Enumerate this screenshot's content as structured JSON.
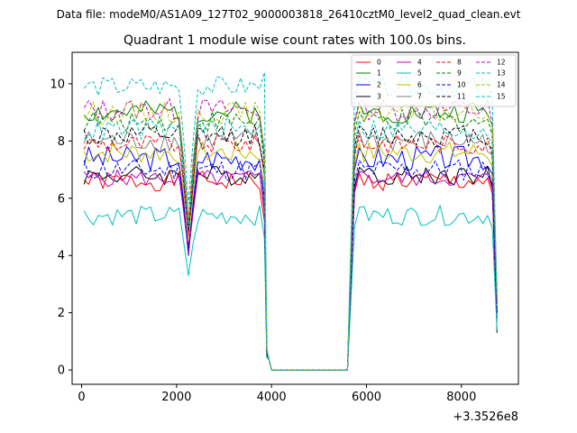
{
  "suptitle": "Data file: modeM0/AS1A09_127T02_9000003818_26410cztM0_level2_quad_clean.evt",
  "chart_data": {
    "type": "line",
    "title": "Quadrant 1 module wise count rates with 100.0s bins.",
    "xlabel": "",
    "ylabel": "",
    "x_offset_label": "+3.3526e8",
    "xlim": [
      -200,
      9200
    ],
    "ylim": [
      -0.5,
      11.1
    ],
    "xticks": [
      0,
      2000,
      4000,
      6000,
      8000
    ],
    "xtick_labels": [
      "0",
      "2000",
      "4000",
      "6000",
      "8000"
    ],
    "yticks": [
      0,
      2,
      4,
      6,
      8,
      10
    ],
    "ytick_labels": [
      "0",
      "2",
      "4",
      "6",
      "8",
      "10"
    ],
    "grid": false,
    "legend_location": "top-right",
    "legend_columns": 4,
    "segment_a": {
      "x_start": 50,
      "x_end": 3850,
      "step": 100
    },
    "gap": {
      "x_start": 3950,
      "x_end": 5650,
      "value": 0.0
    },
    "segment_b": {
      "x_start": 5750,
      "x_end": 8750,
      "step": 100
    },
    "series": [
      {
        "name": "0",
        "color": "#ff0000",
        "dash": "solid",
        "base": 6.6,
        "amp": 0.35,
        "dip": 4.3,
        "drop_a": 5.2,
        "drop_b": 2.0,
        "seed": 1
      },
      {
        "name": "1",
        "color": "#008000",
        "dash": "solid",
        "base": 9.0,
        "amp": 0.4,
        "dip": 5.0,
        "drop_a": 7.5,
        "drop_b": 2.0,
        "seed": 2
      },
      {
        "name": "2",
        "color": "#0000ff",
        "dash": "solid",
        "base": 7.4,
        "amp": 0.45,
        "dip": 4.0,
        "drop_a": 6.0,
        "drop_b": 2.0,
        "seed": 3
      },
      {
        "name": "3",
        "color": "#000000",
        "dash": "solid",
        "base": 6.8,
        "amp": 0.35,
        "dip": 4.2,
        "drop_a": 5.6,
        "drop_b": 1.3,
        "seed": 4
      },
      {
        "name": "4",
        "color": "#bf00bf",
        "dash": "solid",
        "base": 6.7,
        "amp": 0.3,
        "dip": 4.1,
        "drop_a": 5.5,
        "drop_b": 1.8,
        "seed": 5
      },
      {
        "name": "5",
        "color": "#00bfbf",
        "dash": "solid",
        "base": 5.4,
        "amp": 0.35,
        "dip": 3.3,
        "drop_a": 4.6,
        "drop_b": 1.4,
        "seed": 6
      },
      {
        "name": "6",
        "color": "#bfbf00",
        "dash": "solid",
        "base": 7.6,
        "amp": 0.4,
        "dip": 4.6,
        "drop_a": 6.4,
        "drop_b": 2.2,
        "seed": 7
      },
      {
        "name": "7",
        "color": "#808080",
        "dash": "solid",
        "base": 8.0,
        "amp": 0.4,
        "dip": 4.8,
        "drop_a": 6.8,
        "drop_b": 2.4,
        "seed": 8
      },
      {
        "name": "8",
        "color": "#ff0000",
        "dash": "dashed",
        "base": 7.9,
        "amp": 0.35,
        "dip": 4.7,
        "drop_a": 6.8,
        "drop_b": 2.3,
        "seed": 9
      },
      {
        "name": "9",
        "color": "#008000",
        "dash": "dashed",
        "base": 8.7,
        "amp": 0.4,
        "dip": 5.0,
        "drop_a": 7.3,
        "drop_b": 2.5,
        "seed": 10
      },
      {
        "name": "10",
        "color": "#0000ff",
        "dash": "dashed",
        "base": 7.0,
        "amp": 0.4,
        "dip": 4.2,
        "drop_a": 5.9,
        "drop_b": 2.0,
        "seed": 11
      },
      {
        "name": "11",
        "color": "#000000",
        "dash": "dashed",
        "base": 8.2,
        "amp": 0.4,
        "dip": 4.9,
        "drop_a": 7.0,
        "drop_b": 2.4,
        "seed": 12
      },
      {
        "name": "12",
        "color": "#bf00bf",
        "dash": "dashed",
        "base": 9.1,
        "amp": 0.4,
        "dip": 5.2,
        "drop_a": 7.7,
        "drop_b": 2.5,
        "seed": 13
      },
      {
        "name": "13",
        "color": "#00bfbf",
        "dash": "dashed",
        "base": 9.9,
        "amp": 0.35,
        "dip": 5.8,
        "drop_a": 10.4,
        "drop_b": 2.6,
        "seed": 14
      },
      {
        "name": "14",
        "color": "#bfbf00",
        "dash": "dashed",
        "base": 9.0,
        "amp": 0.4,
        "dip": 5.3,
        "drop_a": 7.6,
        "drop_b": 2.5,
        "seed": 15
      },
      {
        "name": "15",
        "color": "#00bfbf",
        "dash": "dashed",
        "base": 8.4,
        "amp": 0.4,
        "dip": 5.0,
        "drop_a": 7.1,
        "drop_b": 2.4,
        "seed": 16
      }
    ]
  }
}
